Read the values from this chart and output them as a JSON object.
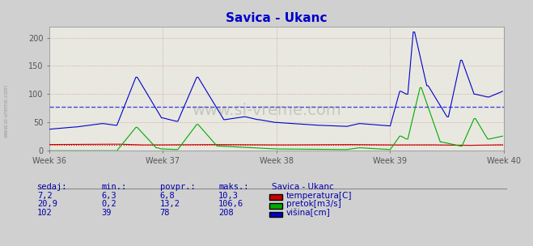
{
  "title": "Savica - Ukanc",
  "background_color": "#d8d8d8",
  "plot_bg_color": "#e8e8e8",
  "grid_color": "#c8a0a0",
  "dot_grid_color": "#d0b0b0",
  "xlim": [
    0,
    336
  ],
  "ylim": [
    0,
    220
  ],
  "yticks": [
    0,
    50,
    100,
    150,
    200
  ],
  "weeks": [
    {
      "label": "Week 36",
      "x": 0
    },
    {
      "label": "Week 37",
      "x": 84
    },
    {
      "label": "Week 38",
      "x": 168
    },
    {
      "label": "Week 39",
      "x": 252
    },
    {
      "label": "Week 40",
      "x": 336
    }
  ],
  "avg_line_value": 78,
  "avg_line_color": "#0000cc",
  "avg_line_style": "dashed",
  "temp_avg_value": 6.8,
  "temp_color": "#cc0000",
  "temp_avg_line": true,
  "legend_title": "Savica - Ukanc",
  "legend_items": [
    {
      "label": "temperatura[C]",
      "color": "#cc0000"
    },
    {
      "label": "pretok[m3/s]",
      "color": "#00aa00"
    },
    {
      "label": "višina[cm]",
      "color": "#0000cc"
    }
  ],
  "table_headers": [
    "sedaj:",
    "min.:",
    "povpr.:",
    "maks.:"
  ],
  "table_data": [
    [
      "7,2",
      "6,3",
      "6,8",
      "10,3"
    ],
    [
      "20,9",
      "0,2",
      "13,2",
      "106,6"
    ],
    [
      "102",
      "39",
      "78",
      "208"
    ]
  ],
  "watermark": "www.si-vreme.com",
  "watermark_color": "#555555",
  "side_text": "www.si-vreme.com"
}
